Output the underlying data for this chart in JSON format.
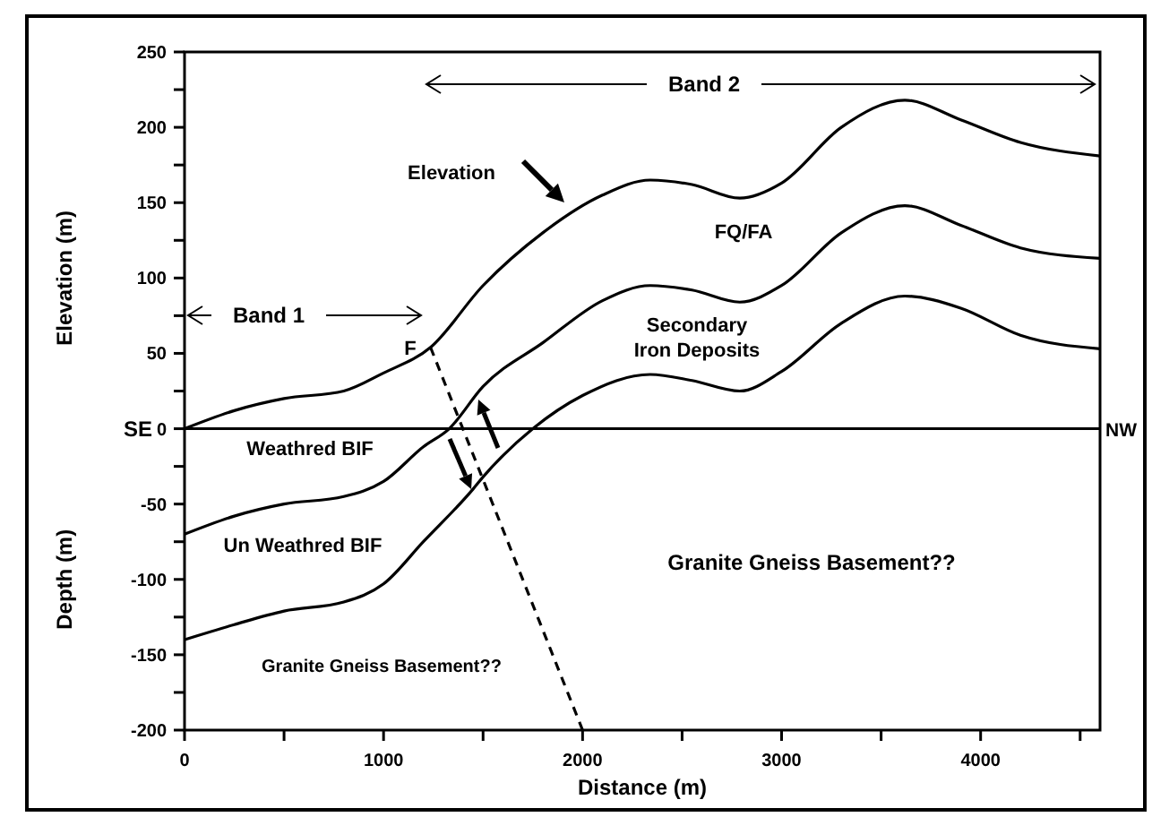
{
  "chart_data": {
    "type": "line",
    "xlabel": "Distance (m)",
    "ylabel": "Elevation (m)",
    "xlim": [
      0,
      4600
    ],
    "ylim": [
      -200,
      250
    ],
    "xticks": [
      0,
      {
        "value": 500,
        "label": null
      },
      1000,
      {
        "value": 1500,
        "label": null
      },
      2000,
      {
        "value": 2500,
        "label": null
      },
      3000,
      {
        "value": 3500,
        "label": null
      },
      4000,
      {
        "value": 4500,
        "label": null
      }
    ],
    "yticks": [
      -200,
      {
        "value": -175,
        "label": null
      },
      -150,
      {
        "value": -125,
        "label": null
      },
      -100,
      {
        "value": -75,
        "label": null
      },
      -50,
      {
        "value": -25,
        "label": null
      },
      0,
      {
        "value": 25,
        "label": null
      },
      50,
      {
        "value": 75,
        "label": null
      },
      100,
      {
        "value": 125,
        "label": null
      },
      150,
      {
        "value": 175,
        "label": null
      },
      200,
      {
        "value": 225,
        "label": null
      },
      250
    ],
    "grid": false,
    "marker": "none",
    "series": [
      {
        "color": "#000000",
        "x": [
          0,
          250,
          500,
          800,
          1000,
          1236,
          1500,
          1800,
          2100,
          2340,
          2550,
          2790,
          3000,
          3300,
          3619,
          3900,
          4200,
          4600
        ],
        "values": [
          0,
          12,
          20,
          25,
          37,
          54,
          95,
          130,
          155,
          165,
          162,
          153,
          163,
          200,
          218,
          205,
          190,
          181
        ]
      },
      {
        "color": "#000000",
        "x": [
          0,
          250,
          500,
          800,
          1000,
          1200,
          1330,
          1500,
          1800,
          2100,
          2340,
          2550,
          2790,
          3000,
          3300,
          3619,
          3900,
          4200,
          4600
        ],
        "values": [
          -70,
          -58,
          -50,
          -45,
          -35,
          -12,
          0,
          28,
          57,
          85,
          95,
          92,
          84,
          95,
          130,
          148,
          135,
          120,
          113
        ]
      },
      {
        "color": "#000000",
        "x": [
          0,
          250,
          500,
          800,
          1000,
          1200,
          1450,
          1500,
          1750,
          2000,
          2340,
          2550,
          2790,
          3000,
          3300,
          3619,
          3900,
          4200,
          4600
        ],
        "values": [
          -140,
          -130,
          -121,
          -115,
          -103,
          -75,
          -40,
          -32,
          0,
          22,
          36,
          32,
          25,
          38,
          70,
          88,
          80,
          62,
          53
        ]
      },
      {
        "color": "#000000",
        "line_style": "dashed",
        "x": [
          1236,
          2000
        ],
        "values": [
          54,
          -200
        ]
      }
    ],
    "ref_lines": [
      {
        "axis": "y",
        "value": 0,
        "label": "SE"
      }
    ],
    "annotations": [
      "Depth (m)",
      "NW",
      "Band 1",
      "Band 2",
      "Elevation",
      "FQ/FA",
      "Secondary\nIron Deposits",
      "F",
      "Weathred BIF",
      "Un Weathred BIF",
      "Granite Gneiss Basement??",
      "Granite Gneiss Basement??"
    ]
  }
}
